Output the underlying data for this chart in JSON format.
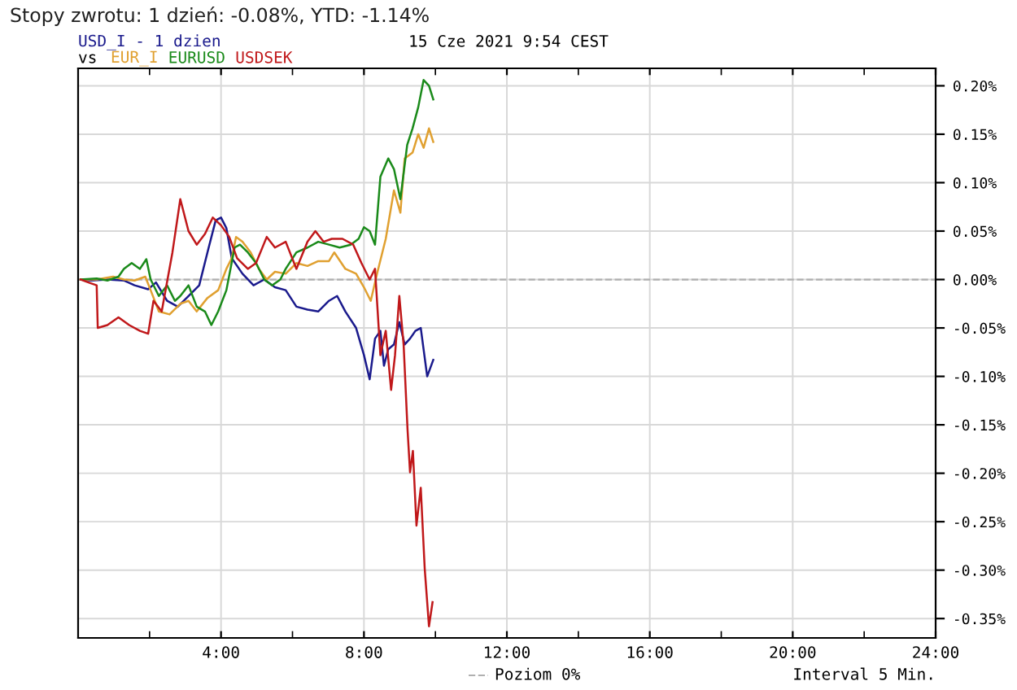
{
  "chart_data": {
    "type": "line",
    "title": "Stopy zwrotu: 1 dzień: -0.08%, YTD: -1.14%",
    "subtitle": "15 Cze 2021 9:54 CEST",
    "annotations": [
      "vs",
      "Interval 5 Min."
    ],
    "xlim": [
      0,
      24
    ],
    "ylim": [
      -0.37,
      0.218
    ],
    "xticks": [
      {
        "value": 2,
        "label": null
      },
      {
        "value": 4,
        "label": "4:00"
      },
      {
        "value": 6,
        "label": null
      },
      {
        "value": 8,
        "label": "8:00"
      },
      {
        "value": 10,
        "label": null
      },
      {
        "value": 12,
        "label": "12:00"
      },
      {
        "value": 14,
        "label": null
      },
      {
        "value": 16,
        "label": "16:00"
      },
      {
        "value": 18,
        "label": null
      },
      {
        "value": 20,
        "label": "20:00"
      },
      {
        "value": 22,
        "label": null
      },
      {
        "value": 24,
        "label": "24:00"
      }
    ],
    "yticks": [
      {
        "value": 0.2,
        "label": "0.20%"
      },
      {
        "value": 0.15,
        "label": "0.15%"
      },
      {
        "value": 0.1,
        "label": "0.10%"
      },
      {
        "value": 0.05,
        "label": "0.05%"
      },
      {
        "value": 0,
        "label": "0.00%"
      },
      {
        "value": -0.05,
        "label": "-0.05%"
      },
      {
        "value": -0.1,
        "label": "-0.10%"
      },
      {
        "value": -0.15,
        "label": "-0.15%"
      },
      {
        "value": -0.2,
        "label": "-0.20%"
      },
      {
        "value": -0.25,
        "label": "-0.25%"
      },
      {
        "value": -0.3,
        "label": "-0.30%"
      },
      {
        "value": -0.35,
        "label": "-0.35%"
      }
    ],
    "grid": true,
    "legend": "bottom",
    "line_style": "solid",
    "marker": "none",
    "ref_lines": [
      {
        "axis": "y",
        "value": 0,
        "label": "Poziom 0%",
        "color": "#b0b0b0",
        "line_style": "dashed"
      }
    ],
    "series": [
      {
        "name": "USD_I - 1 dzien",
        "color": "#1a1a8c",
        "x": [
          0.07,
          0.37,
          0.82,
          1.28,
          1.58,
          1.96,
          2.18,
          2.49,
          2.79,
          3.09,
          3.39,
          3.62,
          3.85,
          4.0,
          4.15,
          4.3,
          4.6,
          4.91,
          5.21,
          5.51,
          5.81,
          6.11,
          6.42,
          6.72,
          7.02,
          7.25,
          7.48,
          7.78,
          8.0,
          8.16,
          8.31,
          8.46,
          8.56,
          8.68,
          8.84,
          8.99,
          9.14,
          9.29,
          9.44,
          9.59,
          9.77,
          9.94
        ],
        "values": [
          0,
          -0.001,
          0,
          -0.001,
          -0.006,
          -0.01,
          -0.003,
          -0.022,
          -0.028,
          -0.017,
          -0.006,
          0.028,
          0.061,
          0.064,
          0.053,
          0.022,
          0.006,
          -0.006,
          0,
          -0.008,
          -0.011,
          -0.028,
          -0.031,
          -0.033,
          -0.022,
          -0.017,
          -0.033,
          -0.05,
          -0.078,
          -0.103,
          -0.061,
          -0.053,
          -0.089,
          -0.072,
          -0.067,
          -0.044,
          -0.067,
          -0.061,
          -0.053,
          -0.05,
          -0.1,
          -0.083
        ]
      },
      {
        "name": "EUR_I",
        "color": "#e0a030",
        "x": [
          0.07,
          0.52,
          0.98,
          1.28,
          1.58,
          1.88,
          2.03,
          2.26,
          2.56,
          2.86,
          3.09,
          3.32,
          3.62,
          3.92,
          4.15,
          4.3,
          4.42,
          4.6,
          4.83,
          5.06,
          5.28,
          5.51,
          5.81,
          6.11,
          6.42,
          6.72,
          7.02,
          7.17,
          7.48,
          7.78,
          8.0,
          8.19,
          8.38,
          8.61,
          8.84,
          9.02,
          9.14,
          9.36,
          9.52,
          9.67,
          9.82,
          9.94
        ],
        "values": [
          0,
          0,
          0.003,
          0,
          -0.001,
          0.003,
          -0.011,
          -0.033,
          -0.036,
          -0.025,
          -0.022,
          -0.033,
          -0.019,
          -0.011,
          0.011,
          0.022,
          0.044,
          0.039,
          0.028,
          0.011,
          0,
          0.008,
          0.006,
          0.017,
          0.014,
          0.019,
          0.019,
          0.028,
          0.011,
          0.006,
          -0.008,
          -0.022,
          0.008,
          0.042,
          0.092,
          0.069,
          0.125,
          0.131,
          0.15,
          0.136,
          0.156,
          0.142
        ]
      },
      {
        "name": "EURUSD",
        "color": "#1a8a1a",
        "x": [
          0.07,
          0.52,
          0.82,
          1.13,
          1.28,
          1.5,
          1.73,
          1.91,
          2.03,
          2.26,
          2.49,
          2.71,
          2.86,
          3.09,
          3.32,
          3.55,
          3.73,
          3.92,
          4.15,
          4.38,
          4.53,
          4.75,
          4.98,
          5.21,
          5.43,
          5.66,
          5.81,
          6.11,
          6.42,
          6.72,
          7.02,
          7.32,
          7.63,
          7.85,
          8.0,
          8.16,
          8.31,
          8.46,
          8.68,
          8.84,
          9.02,
          9.21,
          9.36,
          9.52,
          9.67,
          9.82,
          9.94
        ],
        "values": [
          0,
          0.001,
          -0.001,
          0.003,
          0.011,
          0.017,
          0.011,
          0.021,
          0,
          -0.017,
          -0.006,
          -0.022,
          -0.017,
          -0.006,
          -0.028,
          -0.033,
          -0.047,
          -0.033,
          -0.011,
          0.033,
          0.036,
          0.028,
          0.017,
          0,
          -0.006,
          0,
          0.011,
          0.028,
          0.033,
          0.039,
          0.036,
          0.033,
          0.036,
          0.042,
          0.054,
          0.05,
          0.036,
          0.106,
          0.125,
          0.114,
          0.083,
          0.139,
          0.156,
          0.178,
          0.206,
          0.2,
          0.186
        ]
      },
      {
        "name": "USDSEK",
        "color": "#c0181a",
        "x": [
          0.07,
          0.29,
          0.52,
          0.55,
          0.82,
          1.13,
          1.43,
          1.73,
          1.96,
          2.11,
          2.34,
          2.64,
          2.86,
          3.09,
          3.32,
          3.55,
          3.77,
          4.0,
          4.23,
          4.45,
          4.75,
          4.98,
          5.28,
          5.51,
          5.81,
          6.11,
          6.42,
          6.64,
          6.87,
          7.1,
          7.4,
          7.7,
          7.93,
          8.16,
          8.31,
          8.46,
          8.61,
          8.76,
          8.87,
          8.99,
          9.11,
          9.22,
          9.29,
          9.37,
          9.47,
          9.59,
          9.7,
          9.82,
          9.92
        ],
        "values": [
          0,
          -0.003,
          -0.006,
          -0.05,
          -0.047,
          -0.039,
          -0.047,
          -0.053,
          -0.056,
          -0.022,
          -0.033,
          0.028,
          0.083,
          0.05,
          0.036,
          0.047,
          0.064,
          0.056,
          0.044,
          0.022,
          0.011,
          0.017,
          0.044,
          0.033,
          0.039,
          0.011,
          0.039,
          0.05,
          0.039,
          0.042,
          0.042,
          0.036,
          0.017,
          0,
          0.011,
          -0.078,
          -0.053,
          -0.114,
          -0.078,
          -0.017,
          -0.067,
          -0.155,
          -0.199,
          -0.177,
          -0.254,
          -0.215,
          -0.298,
          -0.358,
          -0.333
        ]
      }
    ]
  }
}
